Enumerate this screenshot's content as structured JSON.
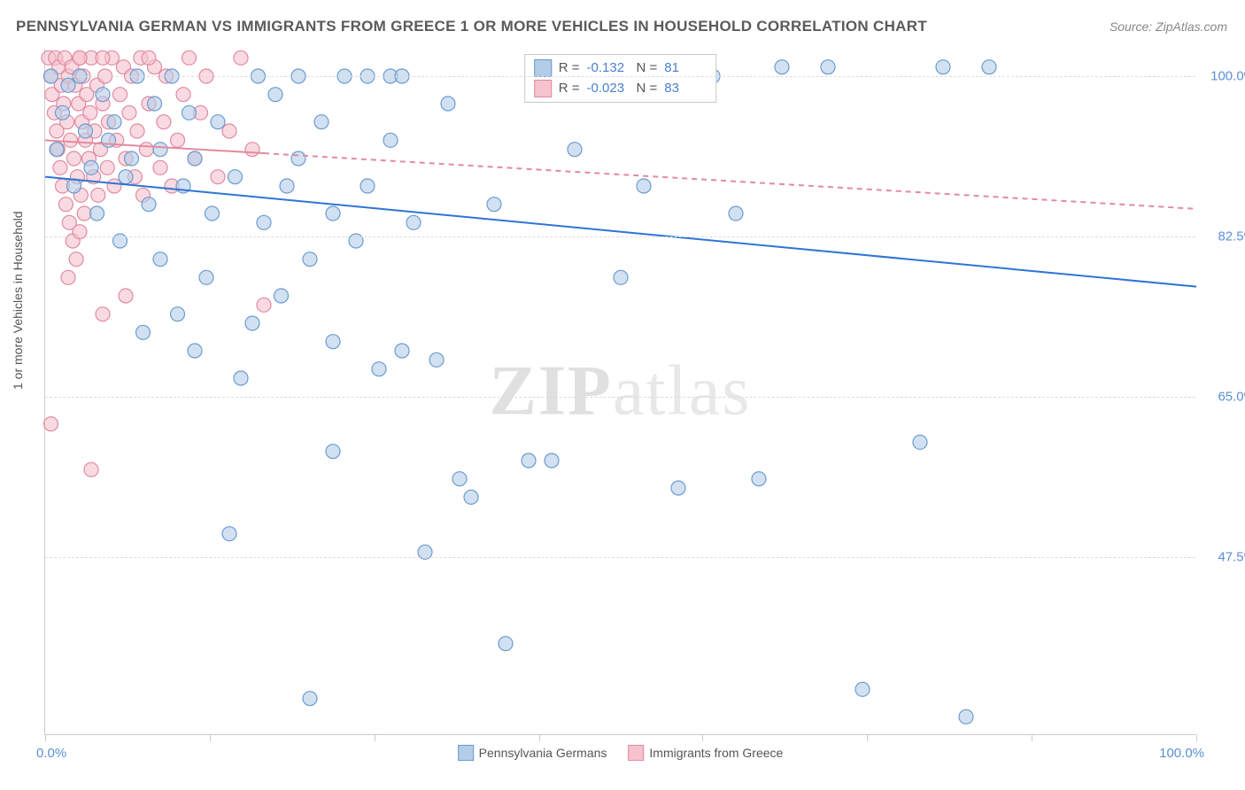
{
  "title": "PENNSYLVANIA GERMAN VS IMMIGRANTS FROM GREECE 1 OR MORE VEHICLES IN HOUSEHOLD CORRELATION CHART",
  "source": "Source: ZipAtlas.com",
  "watermark_a": "ZIP",
  "watermark_b": "atlas",
  "chart": {
    "type": "scatter",
    "ylabel": "1 or more Vehicles in Household",
    "xlim": [
      0,
      100
    ],
    "ylim": [
      28,
      103
    ],
    "x_tick_positions": [
      0,
      14.3,
      28.6,
      42.9,
      57.1,
      71.4,
      85.7,
      100
    ],
    "y_gridlines": [
      47.5,
      65.0,
      82.5,
      100.0
    ],
    "y_tick_labels": [
      "47.5%",
      "65.0%",
      "82.5%",
      "100.0%"
    ],
    "xaxis_min_label": "0.0%",
    "xaxis_max_label": "100.0%",
    "background_color": "#ffffff",
    "grid_color": "#dcdcdc",
    "axis_color": "#cccccc",
    "tick_label_color": "#5b8fd6",
    "series": [
      {
        "name": "Pennsylvania Germans",
        "fill": "#b3cde8",
        "stroke": "#6b9bd1",
        "fill_opacity": 0.6,
        "marker_radius": 8,
        "trend": {
          "x1": 0,
          "y1": 89.0,
          "x2": 100,
          "y2": 77.0,
          "color": "#2e74d6",
          "width": 2,
          "dash": "none"
        },
        "stats": {
          "R": "-0.132",
          "N": "81"
        },
        "points": [
          [
            0.5,
            100
          ],
          [
            1,
            92
          ],
          [
            1.5,
            96
          ],
          [
            2,
            99
          ],
          [
            2.5,
            88
          ],
          [
            3,
            100
          ],
          [
            3.5,
            94
          ],
          [
            4,
            90
          ],
          [
            4.5,
            85
          ],
          [
            5,
            98
          ],
          [
            5.5,
            93
          ],
          [
            6,
            95
          ],
          [
            6.5,
            82
          ],
          [
            7,
            89
          ],
          [
            7.5,
            91
          ],
          [
            8,
            100
          ],
          [
            8.5,
            72
          ],
          [
            9,
            86
          ],
          [
            9.5,
            97
          ],
          [
            10,
            80
          ],
          [
            10,
            92
          ],
          [
            11,
            100
          ],
          [
            11.5,
            74
          ],
          [
            12,
            88
          ],
          [
            12.5,
            96
          ],
          [
            13,
            70
          ],
          [
            13,
            91
          ],
          [
            14,
            78
          ],
          [
            14.5,
            85
          ],
          [
            15,
            95
          ],
          [
            16,
            50
          ],
          [
            16.5,
            89
          ],
          [
            17,
            67
          ],
          [
            18,
            73
          ],
          [
            18.5,
            100
          ],
          [
            19,
            84
          ],
          [
            20,
            98
          ],
          [
            20.5,
            76
          ],
          [
            21,
            88
          ],
          [
            22,
            91
          ],
          [
            22,
            100
          ],
          [
            23,
            80
          ],
          [
            23,
            32
          ],
          [
            24,
            95
          ],
          [
            25,
            59
          ],
          [
            25,
            71
          ],
          [
            25,
            85
          ],
          [
            26,
            100
          ],
          [
            27,
            82
          ],
          [
            28,
            88
          ],
          [
            28,
            100
          ],
          [
            29,
            68
          ],
          [
            30,
            93
          ],
          [
            30,
            100
          ],
          [
            31,
            70
          ],
          [
            31,
            100
          ],
          [
            32,
            84
          ],
          [
            33,
            48
          ],
          [
            34,
            69
          ],
          [
            35,
            97
          ],
          [
            36,
            56
          ],
          [
            37,
            54
          ],
          [
            39,
            86
          ],
          [
            40,
            38
          ],
          [
            42,
            58
          ],
          [
            44,
            58
          ],
          [
            46,
            92
          ],
          [
            48,
            100
          ],
          [
            50,
            78
          ],
          [
            52,
            88
          ],
          [
            55,
            55
          ],
          [
            58,
            100
          ],
          [
            60,
            85
          ],
          [
            62,
            56
          ],
          [
            64,
            101
          ],
          [
            68,
            101
          ],
          [
            71,
            33
          ],
          [
            76,
            60
          ],
          [
            78,
            101
          ],
          [
            80,
            30
          ],
          [
            82,
            101
          ]
        ]
      },
      {
        "name": "Immigrants from Greece",
        "fill": "#f5c2cd",
        "stroke": "#e08aa0",
        "fill_opacity": 0.6,
        "marker_radius": 8,
        "trend": {
          "x1": 0,
          "y1": 93.0,
          "x2": 100,
          "y2": 85.5,
          "color": "#e38aa0",
          "width": 2,
          "dash": "6,5",
          "solid_until_x": 19
        },
        "stats": {
          "R": "-0.023",
          "N": "83"
        },
        "points": [
          [
            0.3,
            102
          ],
          [
            0.5,
            100
          ],
          [
            0.6,
            98
          ],
          [
            0.8,
            96
          ],
          [
            0.9,
            102
          ],
          [
            1.0,
            94
          ],
          [
            1.1,
            92
          ],
          [
            1.2,
            101
          ],
          [
            1.3,
            90
          ],
          [
            1.4,
            99
          ],
          [
            1.5,
            88
          ],
          [
            1.6,
            97
          ],
          [
            1.7,
            102
          ],
          [
            1.8,
            86
          ],
          [
            1.9,
            95
          ],
          [
            2.0,
            100
          ],
          [
            2.1,
            84
          ],
          [
            2.2,
            93
          ],
          [
            2.3,
            101
          ],
          [
            2.4,
            82
          ],
          [
            2.5,
            91
          ],
          [
            2.6,
            99
          ],
          [
            2.7,
            80
          ],
          [
            2.8,
            89
          ],
          [
            2.9,
            97
          ],
          [
            3.0,
            102
          ],
          [
            3.1,
            87
          ],
          [
            3.2,
            95
          ],
          [
            3.3,
            100
          ],
          [
            3.4,
            85
          ],
          [
            3.5,
            93
          ],
          [
            3.6,
            98
          ],
          [
            3.8,
            91
          ],
          [
            3.9,
            96
          ],
          [
            4.0,
            102
          ],
          [
            4.2,
            89
          ],
          [
            4.3,
            94
          ],
          [
            4.5,
            99
          ],
          [
            4.6,
            87
          ],
          [
            4.8,
            92
          ],
          [
            5.0,
            97
          ],
          [
            5.2,
            100
          ],
          [
            5.4,
            90
          ],
          [
            5.5,
            95
          ],
          [
            5.8,
            102
          ],
          [
            6.0,
            88
          ],
          [
            6.2,
            93
          ],
          [
            6.5,
            98
          ],
          [
            6.8,
            101
          ],
          [
            7.0,
            91
          ],
          [
            7.3,
            96
          ],
          [
            7.5,
            100
          ],
          [
            7.8,
            89
          ],
          [
            8.0,
            94
          ],
          [
            8.3,
            102
          ],
          [
            8.5,
            87
          ],
          [
            8.8,
            92
          ],
          [
            9.0,
            97
          ],
          [
            9.5,
            101
          ],
          [
            10,
            90
          ],
          [
            10.3,
            95
          ],
          [
            10.5,
            100
          ],
          [
            11,
            88
          ],
          [
            11.5,
            93
          ],
          [
            12,
            98
          ],
          [
            12.5,
            102
          ],
          [
            13,
            91
          ],
          [
            13.5,
            96
          ],
          [
            14,
            100
          ],
          [
            15,
            89
          ],
          [
            16,
            94
          ],
          [
            17,
            102
          ],
          [
            18,
            92
          ],
          [
            19,
            75
          ],
          [
            0.5,
            62
          ],
          [
            2,
            78
          ],
          [
            3,
            83
          ],
          [
            4,
            57
          ],
          [
            5,
            74
          ],
          [
            7,
            76
          ],
          [
            3,
            102
          ],
          [
            5,
            102
          ],
          [
            9,
            102
          ]
        ]
      }
    ],
    "bottom_legend": [
      {
        "label": "Pennsylvania Germans",
        "fill": "#b3cde8",
        "stroke": "#6b9bd1"
      },
      {
        "label": "Immigrants from Greece",
        "fill": "#f5c2cd",
        "stroke": "#e08aa0"
      }
    ]
  }
}
